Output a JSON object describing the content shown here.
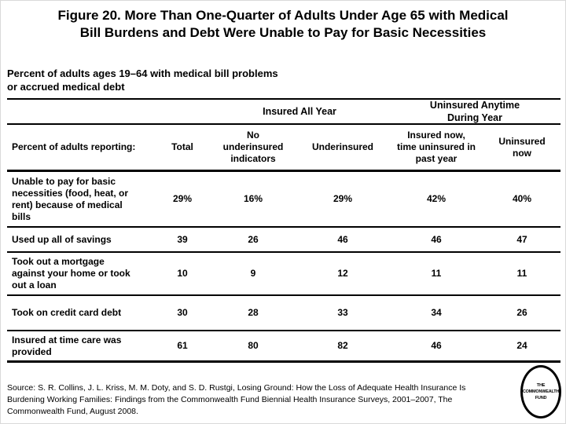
{
  "slide": {
    "title": "Figure 20. More Than One-Quarter of Adults Under Age 65 with Medical\nBill Burdens and Debt Were Unable to Pay for Basic Necessities",
    "subtitle": "Percent of adults ages 19–64 with medical bill problems\nor accrued medical debt",
    "source": "Source: S. R. Collins, J. L. Kriss, M. M. Doty, and S. D. Rustgi, Losing Ground: How the Loss of Adequate Health Insurance Is Burdening Working Families: Findings from the Commonwealth Fund Biennial Health Insurance Surveys, 2001–2007, The Commonwealth Fund, August 2008.",
    "logo_text": "THE\nCOMMONWEALTH\nFUND"
  },
  "table": {
    "group_headers": {
      "insured_all_year": "Insured All Year",
      "uninsured_anytime": "Uninsured Anytime\nDuring Year"
    },
    "columns": {
      "label": "Percent of adults reporting:",
      "total": "Total",
      "no_underinsured": "No\nunderinsured\nindicators",
      "underinsured": "Underinsured",
      "insured_now": "Insured now,\ntime uninsured in\npast year",
      "uninsured_now": "Uninsured\nnow"
    },
    "rows": [
      {
        "label": "Unable to pay for basic\nnecessities (food, heat, or\nrent) because of medical\nbills",
        "values": [
          "29%",
          "16%",
          "29%",
          "42%",
          "40%"
        ]
      },
      {
        "label": "Used up all of savings",
        "values": [
          "39",
          "26",
          "46",
          "46",
          "47"
        ]
      },
      {
        "label": "Took out a mortgage\nagainst your home or took\nout a loan",
        "values": [
          "10",
          "9",
          "12",
          "11",
          "11"
        ]
      },
      {
        "label": "Took on credit card debt",
        "values": [
          "30",
          "28",
          "33",
          "34",
          "26"
        ]
      },
      {
        "label": "Insured at time care was\nprovided",
        "values": [
          "61",
          "80",
          "82",
          "46",
          "24"
        ]
      }
    ]
  },
  "chart_data": {
    "type": "table",
    "title": "Figure 20. More Than One-Quarter of Adults Under Age 65 with Medical Bill Burdens and Debt Were Unable to Pay for Basic Necessities",
    "subtitle": "Percent of adults ages 19–64 with medical bill problems or accrued medical debt",
    "units": "percent",
    "column_groups": [
      {
        "label": "Insured All Year",
        "columns": [
          "No underinsured indicators",
          "Underinsured"
        ]
      },
      {
        "label": "Uninsured Anytime During Year",
        "columns": [
          "Insured now, time uninsured in past year",
          "Uninsured now"
        ]
      }
    ],
    "columns": [
      "Percent of adults reporting:",
      "Total",
      "No underinsured indicators",
      "Underinsured",
      "Insured now, time uninsured in past year",
      "Uninsured now"
    ],
    "rows": [
      {
        "label": "Unable to pay for basic necessities (food, heat, or rent) because of medical bills",
        "values": [
          29,
          16,
          29,
          42,
          40
        ]
      },
      {
        "label": "Used up all of savings",
        "values": [
          39,
          26,
          46,
          46,
          47
        ]
      },
      {
        "label": "Took out a mortgage against your home or took out a loan",
        "values": [
          10,
          9,
          12,
          11,
          11
        ]
      },
      {
        "label": "Took on credit card debt",
        "values": [
          30,
          28,
          33,
          34,
          26
        ]
      },
      {
        "label": "Insured at time care was provided",
        "values": [
          61,
          80,
          82,
          46,
          24
        ]
      }
    ],
    "source": "Source: S. R. Collins, J. L. Kriss, M. M. Doty, and S. D. Rustgi, Losing Ground: How the Loss of Adequate Health Insurance Is Burdening Working Families: Findings from the Commonwealth Fund Biennial Health Insurance Surveys, 2001–2007, The Commonwealth Fund, August 2008."
  }
}
